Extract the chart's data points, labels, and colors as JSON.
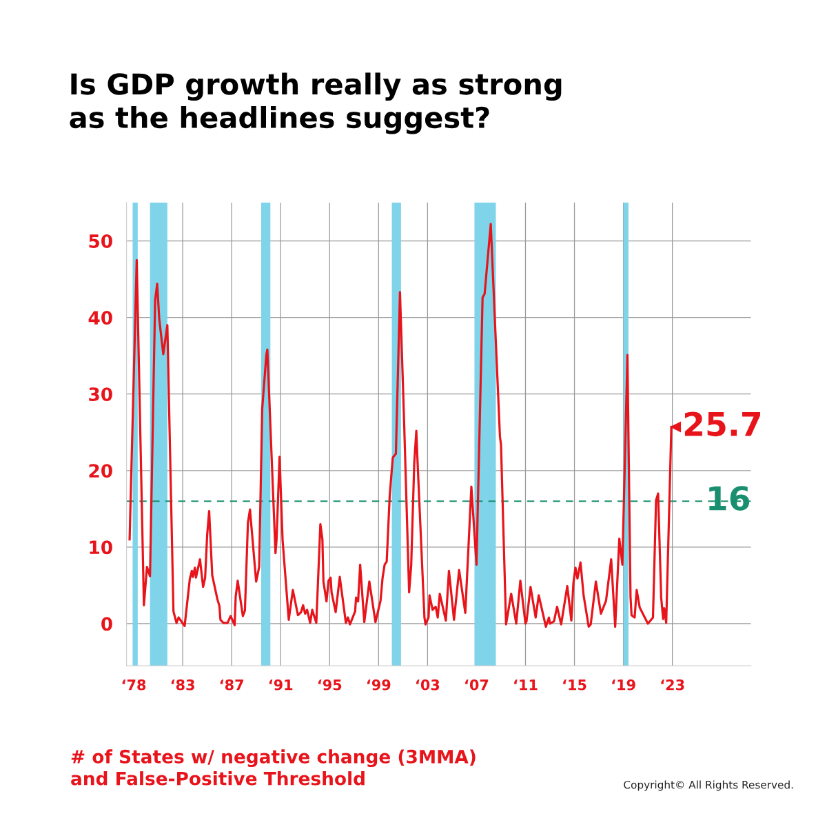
{
  "chart_data": {
    "type": "line",
    "title": "Is GDP growth really as strong\nas the headlines suggest?",
    "x": [
      "1978-09",
      "1979-04",
      "1979-11",
      "1980-02",
      "1980-05",
      "1980-10",
      "1980-12",
      "1981-02",
      "1981-06",
      "1981-10",
      "1982-04",
      "1982-07",
      "1982-09",
      "1983-03",
      "1983-08",
      "1983-10",
      "1983-11",
      "1984-01",
      "1984-02",
      "1984-06",
      "1984-09",
      "1984-11",
      "1985-01",
      "1985-03",
      "1985-06",
      "1985-11",
      "1986-01",
      "1986-02",
      "1986-05",
      "1986-09",
      "1986-12",
      "1987-04",
      "1987-05",
      "1987-07",
      "1987-12",
      "1988-02",
      "1988-05",
      "1988-07",
      "1989-01",
      "1989-04",
      "1989-07",
      "1989-09",
      "1989-11",
      "1989-12",
      "1990-08",
      "1990-09",
      "1990-12",
      "1991-03",
      "1991-09",
      "1992-01",
      "1992-06",
      "1992-09",
      "1992-11",
      "1993-01",
      "1993-03",
      "1993-06",
      "1993-08",
      "1993-12",
      "1994-04",
      "1994-06",
      "1994-07",
      "1994-10",
      "1994-12",
      "1995-02",
      "1995-03",
      "1995-07",
      "1995-11",
      "1996-05",
      "1996-07",
      "1996-09",
      "1997-02",
      "1997-03",
      "1997-05",
      "1997-07",
      "1997-11",
      "1998-04",
      "1998-10",
      "1999-03",
      "1999-05",
      "1999-07",
      "1999-09",
      "1999-12",
      "2000-03",
      "2000-06",
      "2000-10",
      "2001-02",
      "2001-07",
      "2001-09",
      "2001-12",
      "2002-02",
      "2002-03",
      "2002-10",
      "2002-11",
      "2003-02",
      "2003-03",
      "2003-06",
      "2003-09",
      "2003-11",
      "2004-01",
      "2004-07",
      "2004-10",
      "2005-03",
      "2005-08",
      "2006-02",
      "2006-08",
      "2007-01",
      "2007-07",
      "2007-09",
      "2008-03",
      "2008-12",
      "2009-01",
      "2009-06",
      "2009-11",
      "2010-04",
      "2010-08",
      "2011-01",
      "2011-02",
      "2011-06",
      "2011-11",
      "2012-02",
      "2012-09",
      "2012-12",
      "2013-01",
      "2013-05",
      "2013-08",
      "2013-12",
      "2014-06",
      "2014-10",
      "2014-12",
      "2015-02",
      "2015-04",
      "2015-07",
      "2015-10",
      "2016-03",
      "2016-05",
      "2016-10",
      "2017-03",
      "2017-08",
      "2018-01",
      "2018-05",
      "2018-09",
      "2018-12",
      "2019-05",
      "2019-08",
      "2019-09",
      "2019-12",
      "2020-02",
      "2020-05",
      "2021-01",
      "2021-06",
      "2021-09",
      "2021-11",
      "2022-02",
      "2022-04",
      "2022-05",
      "2022-07",
      "2022-12"
    ],
    "series": [
      {
        "color": "#e8141b",
        "values": [
          11.0,
          47.5,
          2.4,
          7.4,
          6.2,
          42.2,
          44.4,
          39.8,
          35.2,
          39.0,
          1.6,
          0.1,
          0.8,
          -0.3,
          5.8,
          6.9,
          6.1,
          7.3,
          6.0,
          8.4,
          4.8,
          6.0,
          11.6,
          14.7,
          6.3,
          3.2,
          2.3,
          0.5,
          0.1,
          0.1,
          1.0,
          -0.2,
          3.5,
          5.6,
          1.0,
          1.7,
          13.2,
          14.9,
          5.5,
          7.4,
          28.1,
          31.6,
          35.1,
          35.8,
          9.2,
          10.9,
          21.8,
          10.9,
          0.5,
          4.4,
          1.1,
          1.5,
          2.4,
          1.3,
          1.8,
          0.1,
          1.8,
          0.1,
          13.0,
          11.0,
          5.5,
          2.9,
          5.6,
          6.0,
          4.1,
          1.5,
          6.1,
          0.1,
          0.8,
          -0.1,
          1.6,
          3.4,
          2.9,
          7.7,
          0.2,
          5.5,
          0.2,
          3.0,
          6.0,
          7.7,
          8.1,
          16.8,
          21.7,
          22.2,
          43.3,
          26.4,
          4.1,
          7.6,
          21.0,
          25.2,
          22.0,
          0.8,
          -0.1,
          0.8,
          3.7,
          1.8,
          2.2,
          0.8,
          3.9,
          0.4,
          6.9,
          0.5,
          7.0,
          1.4,
          17.9,
          7.7,
          42.6,
          43.1,
          52.2,
          24.4,
          23.4,
          -0.1,
          3.9,
          0.0,
          5.6,
          0.0,
          0.3,
          4.8,
          0.8,
          3.7,
          -0.4,
          0.8,
          0.0,
          0.3,
          2.2,
          -0.1,
          4.9,
          0.4,
          5.3,
          7.3,
          5.9,
          8.0,
          3.7,
          -0.4,
          -0.1,
          5.5,
          1.3,
          3.0,
          8.4,
          -0.4,
          11.1,
          7.7,
          35.1,
          3.5,
          1.1,
          0.8,
          4.4,
          2.1,
          0.0,
          0.8,
          16.1,
          17.0,
          3.4,
          0.6,
          2.0,
          0.1,
          25.7
        ]
      }
    ],
    "xlim": [
      "1978-06",
      "2029-06"
    ],
    "ylim": [
      -5.5,
      55
    ],
    "xticks": [
      {
        "value": "1979",
        "label": "‘78"
      },
      {
        "value": "1983",
        "label": "‘83"
      },
      {
        "value": "1987",
        "label": "‘87"
      },
      {
        "value": "1991",
        "label": "‘91"
      },
      {
        "value": "1995",
        "label": "‘95"
      },
      {
        "value": "1999",
        "label": "‘99"
      },
      {
        "value": "2003",
        "label": "‘03"
      },
      {
        "value": "2007",
        "label": "‘07"
      },
      {
        "value": "2011",
        "label": "‘11"
      },
      {
        "value": "2015",
        "label": "‘15"
      },
      {
        "value": "2019",
        "label": "‘19"
      },
      {
        "value": "2023",
        "label": "‘23"
      }
    ],
    "yticks": [
      0,
      10,
      20,
      30,
      40,
      50
    ],
    "grid": true,
    "line_style": "solid",
    "ref_lines": [
      {
        "axis": "y",
        "value": 16,
        "label": "16",
        "color": "#1a8f6f",
        "line_style": "dashed"
      }
    ],
    "bands": [
      {
        "axis": "x",
        "from": "1978-12",
        "to": "1979-05",
        "label": null,
        "color": "#7fd4ea"
      },
      {
        "axis": "x",
        "from": "1980-05",
        "to": "1981-10",
        "label": null,
        "color": "#7fd4ea"
      },
      {
        "axis": "x",
        "from": "1989-06",
        "to": "1990-03",
        "label": null,
        "color": "#7fd4ea"
      },
      {
        "axis": "x",
        "from": "2000-02",
        "to": "2000-11",
        "label": null,
        "color": "#7fd4ea"
      },
      {
        "axis": "x",
        "from": "2006-11",
        "to": "2008-08",
        "label": null,
        "color": "#7fd4ea"
      },
      {
        "axis": "x",
        "from": "2019-01",
        "to": "2019-06",
        "label": null,
        "color": "#7fd4ea"
      }
    ],
    "annotations": [
      {
        "text": "25.7",
        "x": "2022-12",
        "y": 25.7
      },
      "# of States w/ negative change (3MMA)\nand False-Positive Threshold",
      "Copyright© All Rights Reserved."
    ]
  }
}
